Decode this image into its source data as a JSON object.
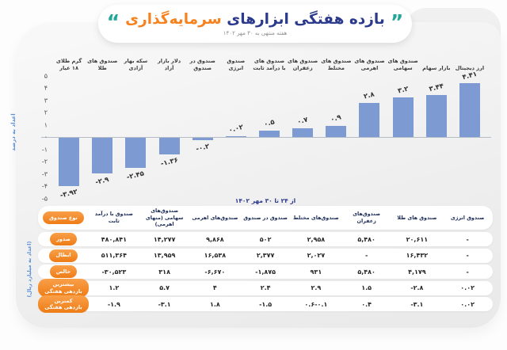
{
  "title": {
    "part1": "بازده هفتگی ابزارهای",
    "part2": "سرمایه‌گذاری",
    "subtitle": "هفته منتهی به ۳۰ مهر ۱۴۰۲",
    "quote_right": "”",
    "quote_left": "“"
  },
  "chart_data": {
    "type": "bar",
    "title": "بازده هفتگی ابزارهای سرمایه‌گذاری",
    "ylabel": "اعداد به درصد",
    "ylim": [
      -5,
      5
    ],
    "grid": false,
    "legend": "none",
    "bar_color": "#7e9ad2",
    "categories": [
      "گرم طلای ۱۸ عیار",
      "صندوق های طلا",
      "سکه بهار آزادی",
      "دلار بازار آزاد",
      "صندوق در صندوق",
      "صندوق انرژی",
      "صندوق های با درآمد ثابت",
      "صندوق های زعفران",
      "صندوق های مختلط",
      "صندوق های اهرمی",
      "صندوق های سهامی",
      "بازار سهام",
      "ارز دیجیتال"
    ],
    "values": [
      -3.92,
      -2.9,
      -2.45,
      -1.36,
      -0.2,
      0.02,
      0.5,
      0.7,
      0.9,
      2.8,
      3.2,
      3.44,
      4.41
    ],
    "value_labels": [
      "-۳.۹۲",
      "-۲.۹",
      "-۲.۴۵",
      "-۱.۳۶",
      "-۰.۲",
      "۰.۰۲",
      "۰.۵",
      "۰.۷",
      "۰.۹",
      "۲.۸",
      "۳.۲",
      "۳.۴۴",
      "۴.۴۱"
    ],
    "ytick_labels": [
      "۵",
      "۴",
      "۳",
      "۲",
      "۱",
      "۰",
      "-۱",
      "-۲",
      "-۳",
      "-۴",
      "-۵"
    ],
    "ytick_values": [
      5,
      4,
      3,
      2,
      1,
      0,
      -1,
      -2,
      -3,
      -4,
      -5
    ]
  },
  "table": {
    "period": "از ۲۴ تا ۳۰ مهر ۱۴۰۲",
    "unit_label": "(اعداد به میلیارد ریال)",
    "corner_label": "نوع صندوق",
    "columns": [
      "صندوق با درآمد ثابت",
      "صندوق‌های سهامی (منهای اهرمی)",
      "صندوق‌های اهرمی",
      "صندوق در صندوق",
      "صندوق‌های مختلط",
      "صندوق‌های زعفران",
      "صندوق های طلا",
      "صندوق انرژی"
    ],
    "rows": [
      {
        "label": "صدور",
        "values": [
          "۴۸۰,۸۴۱",
          "۱۴,۲۷۷",
          "۹,۸۶۸",
          "۵۰۲",
          "۲,۹۵۸",
          "۵,۴۸۰",
          "۲۰,۶۱۱",
          "-"
        ]
      },
      {
        "label": "ابطال",
        "values": [
          "۵۱۱,۳۶۴",
          "۱۳,۹۵۹",
          "۱۶,۵۳۸",
          "۲,۳۷۷",
          "۲,۰۲۷",
          "-",
          "۱۶,۴۳۲",
          "-"
        ]
      },
      {
        "label": "خالص",
        "values": [
          "-۳۰,۵۲۳",
          "۳۱۸",
          "-۶,۶۷۰",
          "-۱,۸۷۵",
          "۹۳۱",
          "۵,۴۸۰",
          "۴,۱۷۹",
          "-"
        ]
      },
      {
        "label": "بیشترین بازدهی هفتگی",
        "values": [
          "۱.۲",
          "۵.۷",
          "۴",
          "۲.۴",
          "۲.۹",
          "۱.۵",
          "-۲.۸",
          "۰.۰۲"
        ]
      },
      {
        "label": "کمترین بازدهی هفتگی",
        "values": [
          "-۱.۹",
          "-۳.۱",
          "۱.۸",
          "-۱.۵",
          "۰.۶-۰.۱",
          "۰.۴",
          "-۳.۱",
          "۰.۰۲"
        ]
      }
    ]
  },
  "colors": {
    "bar": "#7e9ad2",
    "navy": "#2b3a8c",
    "orange": "#f5821f",
    "teal": "#22a79a",
    "pill_gradient_top": "#f9a04a",
    "pill_gradient_bottom": "#ef7c15"
  }
}
